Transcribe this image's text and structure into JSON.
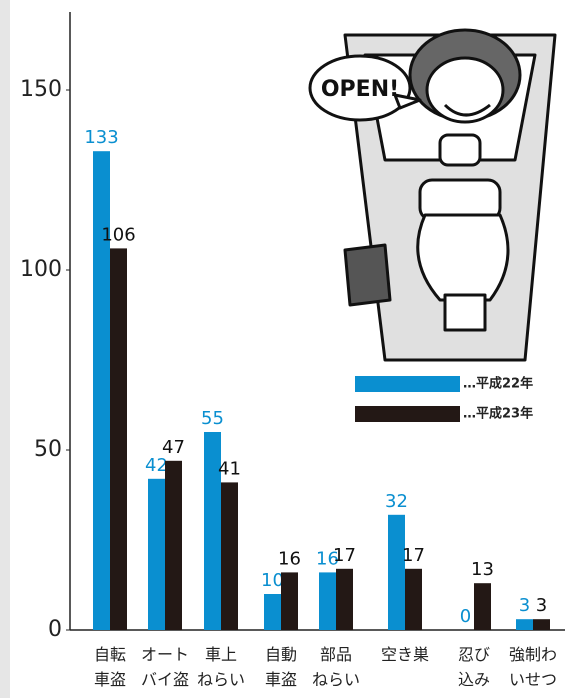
{
  "chart_data": {
    "type": "bar",
    "categories": [
      "自転\n車盗",
      "オート\nバイ盗",
      "車上\nねらい",
      "自動\n車盗",
      "部品\nねらい",
      "空き巣",
      "忍び\n込み",
      "強制わ\nいせつ"
    ],
    "series": [
      {
        "name": "…平成22年",
        "color": "#0a8fd0",
        "values": [
          133,
          42,
          55,
          10,
          16,
          32,
          0,
          3
        ]
      },
      {
        "name": "…平成23年",
        "color": "#231815",
        "values": [
          106,
          47,
          41,
          16,
          17,
          17,
          13,
          3
        ]
      }
    ],
    "ylim": [
      0,
      170
    ],
    "yticks": [
      0,
      50,
      100,
      150
    ],
    "grid": false
  },
  "illustration": {
    "speech": "OPEN!"
  }
}
